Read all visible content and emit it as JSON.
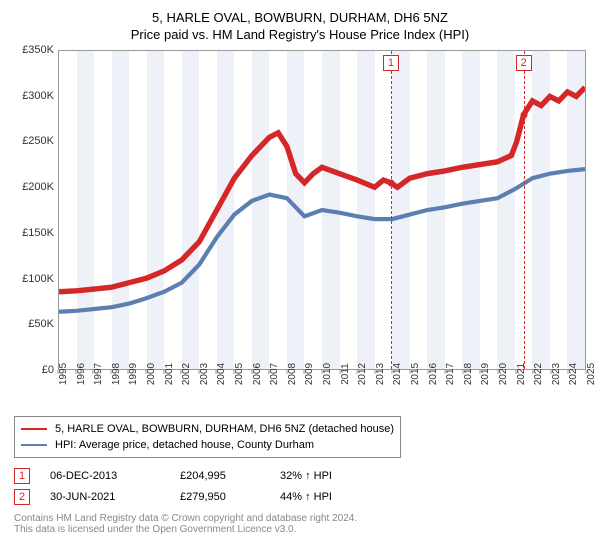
{
  "title": "5, HARLE OVAL, BOWBURN, DURHAM, DH6 5NZ",
  "subtitle": "Price paid vs. HM Land Registry's House Price Index (HPI)",
  "chart": {
    "type": "line",
    "background_color": "#ffffff",
    "axis_color": "#999999",
    "text_color": "#333333",
    "band_color": "#eef1f7",
    "y": {
      "min": 0,
      "max": 350000,
      "step": 50000,
      "labels": [
        "£0",
        "£50K",
        "£100K",
        "£150K",
        "£200K",
        "£250K",
        "£300K",
        "£350K"
      ],
      "fontsize": 11
    },
    "x": {
      "min": 1995,
      "max": 2025,
      "labels": [
        "1995",
        "1996",
        "1997",
        "1998",
        "1999",
        "2000",
        "2001",
        "2002",
        "2003",
        "2004",
        "2005",
        "2006",
        "2007",
        "2008",
        "2009",
        "2010",
        "2011",
        "2012",
        "2013",
        "2014",
        "2015",
        "2016",
        "2017",
        "2018",
        "2019",
        "2020",
        "2021",
        "2022",
        "2023",
        "2024",
        "2025"
      ],
      "fontsize": 10,
      "rotation": -90
    },
    "verticals": [
      {
        "year": 2013.93,
        "color": "#d62728",
        "dash": true,
        "marker": "1"
      },
      {
        "year": 2021.5,
        "color": "#d62728",
        "dash": true,
        "marker": "2"
      }
    ],
    "dots": [
      {
        "year": 2013.93,
        "value": 204995,
        "color": "#d62728"
      },
      {
        "year": 2021.5,
        "value": 279950,
        "color": "#d62728"
      }
    ],
    "series": [
      {
        "name": "5, HARLE OVAL, BOWBURN, DURHAM, DH6 5NZ (detached house)",
        "color": "#d62728",
        "line_width": 1.8,
        "points": [
          [
            1995,
            85000
          ],
          [
            1996,
            86000
          ],
          [
            1997,
            88000
          ],
          [
            1998,
            90000
          ],
          [
            1999,
            95000
          ],
          [
            2000,
            100000
          ],
          [
            2001,
            108000
          ],
          [
            2002,
            120000
          ],
          [
            2003,
            140000
          ],
          [
            2004,
            175000
          ],
          [
            2005,
            210000
          ],
          [
            2006,
            235000
          ],
          [
            2007,
            255000
          ],
          [
            2007.5,
            260000
          ],
          [
            2008,
            245000
          ],
          [
            2008.5,
            215000
          ],
          [
            2009,
            205000
          ],
          [
            2009.5,
            215000
          ],
          [
            2010,
            222000
          ],
          [
            2011,
            215000
          ],
          [
            2012,
            208000
          ],
          [
            2013,
            200000
          ],
          [
            2013.5,
            208000
          ],
          [
            2013.93,
            204995
          ],
          [
            2014.3,
            200000
          ],
          [
            2015,
            210000
          ],
          [
            2016,
            215000
          ],
          [
            2017,
            218000
          ],
          [
            2018,
            222000
          ],
          [
            2019,
            225000
          ],
          [
            2020,
            228000
          ],
          [
            2020.8,
            235000
          ],
          [
            2021.1,
            250000
          ],
          [
            2021.5,
            279950
          ],
          [
            2022,
            295000
          ],
          [
            2022.5,
            290000
          ],
          [
            2023,
            300000
          ],
          [
            2023.5,
            295000
          ],
          [
            2024,
            305000
          ],
          [
            2024.5,
            300000
          ],
          [
            2025,
            310000
          ]
        ]
      },
      {
        "name": "HPI: Average price, detached house, County Durham",
        "color": "#5b7fb0",
        "line_width": 1.4,
        "points": [
          [
            1995,
            63000
          ],
          [
            1996,
            64000
          ],
          [
            1997,
            66000
          ],
          [
            1998,
            68000
          ],
          [
            1999,
            72000
          ],
          [
            2000,
            78000
          ],
          [
            2001,
            85000
          ],
          [
            2002,
            95000
          ],
          [
            2003,
            115000
          ],
          [
            2004,
            145000
          ],
          [
            2005,
            170000
          ],
          [
            2006,
            185000
          ],
          [
            2007,
            192000
          ],
          [
            2008,
            188000
          ],
          [
            2009,
            168000
          ],
          [
            2010,
            175000
          ],
          [
            2011,
            172000
          ],
          [
            2012,
            168000
          ],
          [
            2013,
            165000
          ],
          [
            2014,
            165000
          ],
          [
            2015,
            170000
          ],
          [
            2016,
            175000
          ],
          [
            2017,
            178000
          ],
          [
            2018,
            182000
          ],
          [
            2019,
            185000
          ],
          [
            2020,
            188000
          ],
          [
            2021,
            198000
          ],
          [
            2022,
            210000
          ],
          [
            2023,
            215000
          ],
          [
            2024,
            218000
          ],
          [
            2025,
            220000
          ]
        ]
      }
    ]
  },
  "legend": {
    "items": [
      {
        "color": "#d62728",
        "label": "5, HARLE OVAL, BOWBURN, DURHAM, DH6 5NZ (detached house)"
      },
      {
        "color": "#5b7fb0",
        "label": "HPI: Average price, detached house, County Durham"
      }
    ]
  },
  "records": [
    {
      "n": "1",
      "date": "06-DEC-2013",
      "price": "£204,995",
      "delta": "32% ↑ HPI",
      "color": "#d62728"
    },
    {
      "n": "2",
      "date": "30-JUN-2021",
      "price": "£279,950",
      "delta": "44% ↑ HPI",
      "color": "#d62728"
    }
  ],
  "footer": {
    "line1": "Contains HM Land Registry data © Crown copyright and database right 2024.",
    "line2": "This data is licensed under the Open Government Licence v3.0."
  }
}
